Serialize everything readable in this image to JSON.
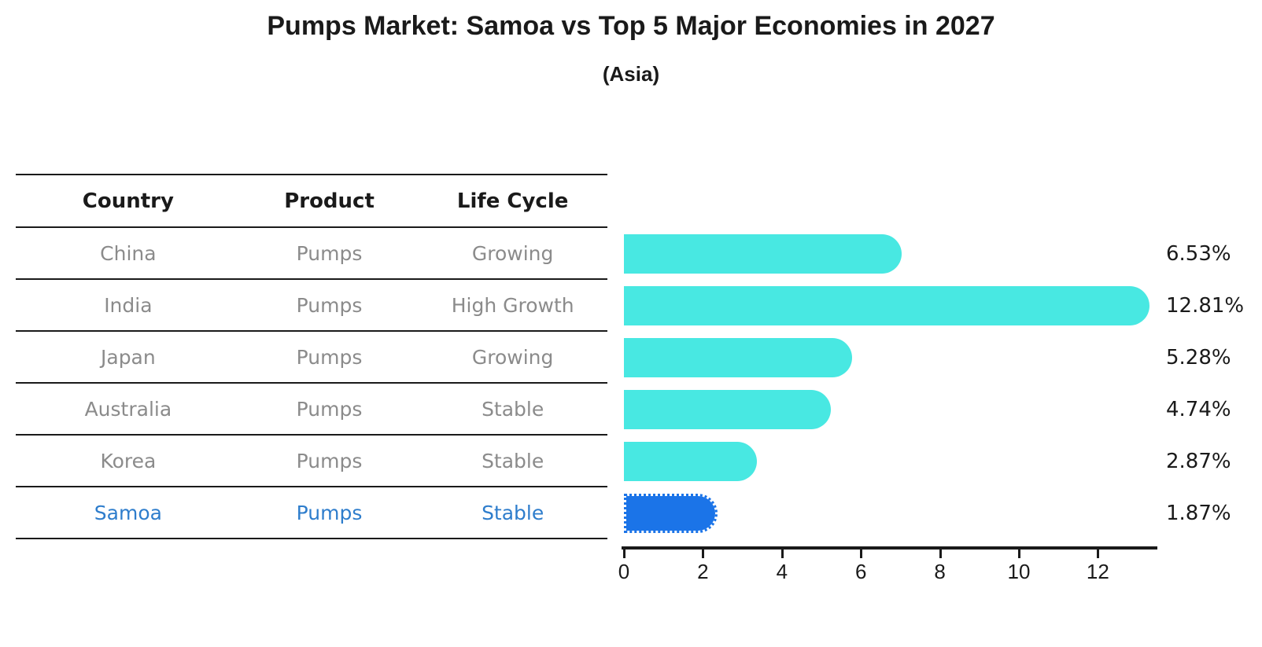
{
  "title": "Pumps Market: Samoa vs Top 5 Major Economies in 2027",
  "subtitle": "(Asia)",
  "colors": {
    "bar": "#48e8e2",
    "highlight_bar": "#1b74e8",
    "highlight_text": "#2e7dcc",
    "row_text": "#8b8b8b",
    "axis": "#1a1a1a"
  },
  "table": {
    "headers": [
      "Country",
      "Product",
      "Life Cycle"
    ]
  },
  "chart_data": {
    "type": "bar",
    "orientation": "horizontal",
    "title": "Pumps Market: Samoa vs Top 5 Major Economies in 2027",
    "subtitle": "(Asia)",
    "categories": [
      "China",
      "India",
      "Japan",
      "Australia",
      "Korea",
      "Samoa"
    ],
    "values": [
      6.53,
      12.81,
      5.28,
      4.74,
      2.87,
      1.87
    ],
    "xlabel": "",
    "ylabel": "",
    "xticks": [
      0,
      2,
      4,
      6,
      8,
      10,
      12
    ],
    "xlim": [
      0,
      13.5
    ],
    "grid": "off",
    "legend": "none",
    "rows": [
      {
        "country": "China",
        "product": "Pumps",
        "life_cycle": "Growing",
        "value": 6.53,
        "label": "6.53%",
        "highlight": false
      },
      {
        "country": "India",
        "product": "Pumps",
        "life_cycle": "High Growth",
        "value": 12.81,
        "label": "12.81%",
        "highlight": false
      },
      {
        "country": "Japan",
        "product": "Pumps",
        "life_cycle": "Growing",
        "value": 5.28,
        "label": "5.28%",
        "highlight": false
      },
      {
        "country": "Australia",
        "product": "Pumps",
        "life_cycle": "Stable",
        "value": 4.74,
        "label": "4.74%",
        "highlight": false
      },
      {
        "country": "Korea",
        "product": "Pumps",
        "life_cycle": "Stable",
        "value": 2.87,
        "label": "2.87%",
        "highlight": false
      },
      {
        "country": "Samoa",
        "product": "Pumps",
        "life_cycle": "Stable",
        "value": 1.87,
        "label": "1.87%",
        "highlight": true
      }
    ]
  }
}
